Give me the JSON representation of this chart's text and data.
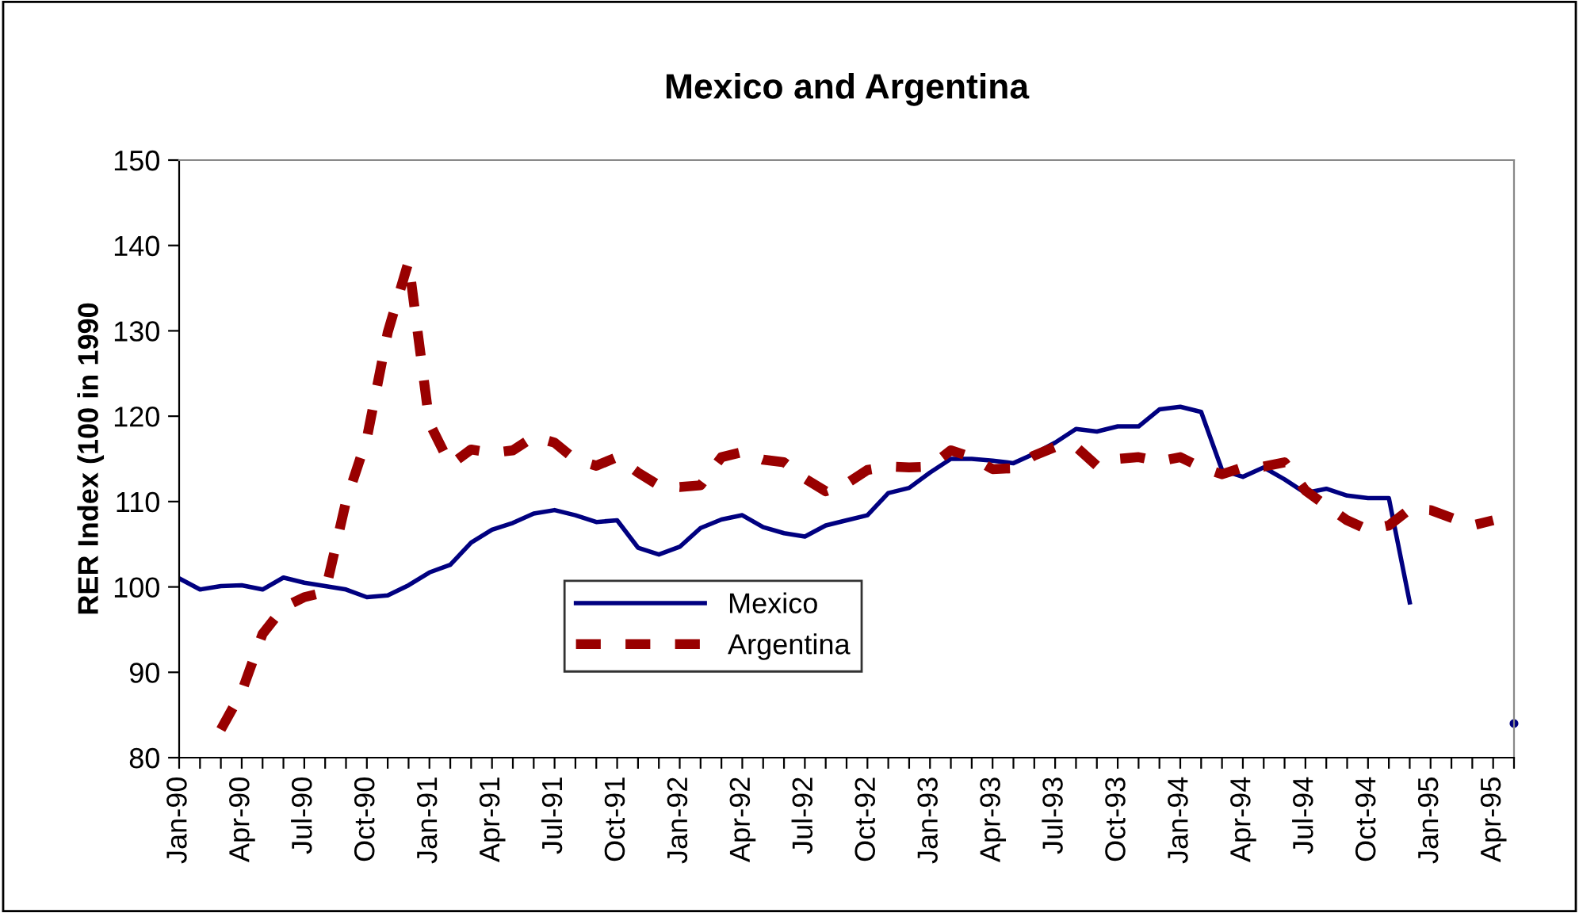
{
  "chart_data": {
    "type": "line",
    "title": "Mexico and Argentina",
    "ylabel": "RER Index (100 in 1990",
    "categories": [
      "Jan-90",
      null,
      null,
      "Apr-90",
      null,
      null,
      "Jul-90",
      null,
      null,
      "Oct-90",
      null,
      null,
      "Jan-91",
      null,
      null,
      "Apr-91",
      null,
      null,
      "Jul-91",
      null,
      null,
      "Oct-91",
      null,
      null,
      "Jan-92",
      null,
      null,
      "Apr-92",
      null,
      null,
      "Jul-92",
      null,
      null,
      "Oct-92",
      null,
      null,
      "Jan-93",
      null,
      null,
      "Apr-93",
      null,
      null,
      "Jul-93",
      null,
      null,
      "Oct-93",
      null,
      null,
      "Jan-94",
      null,
      null,
      "Apr-94",
      null,
      null,
      "Jul-94",
      null,
      null,
      "Oct-94",
      null,
      null,
      "Jan-95",
      null,
      null,
      "Apr-95",
      null
    ],
    "series": [
      {
        "name": "Mexico",
        "color": "#000080",
        "line_style": "solid",
        "values": [
          101.0,
          99.7,
          100.1,
          100.2,
          99.7,
          101.1,
          100.5,
          100.1,
          99.7,
          98.8,
          99.0,
          100.2,
          101.7,
          102.6,
          105.2,
          106.7,
          107.5,
          108.6,
          109.0,
          108.4,
          107.6,
          107.8,
          104.6,
          103.8,
          104.7,
          106.9,
          107.9,
          108.4,
          107.0,
          106.3,
          105.9,
          107.2,
          107.8,
          108.4,
          111.0,
          111.6,
          113.4,
          115.0,
          115.0,
          114.8,
          114.5,
          115.6,
          116.9,
          118.5,
          118.2,
          118.8,
          118.8,
          120.8,
          121.1,
          120.5,
          113.7,
          112.9,
          114.0,
          112.6,
          111.0,
          111.5,
          110.7,
          110.4,
          110.4,
          98.2,
          null,
          null,
          null,
          null,
          84.0
        ]
      },
      {
        "name": "Argentina",
        "color": "#990000",
        "line_style": "dashed",
        "values": [
          null,
          null,
          83.3,
          87.7,
          94.5,
          97.6,
          98.8,
          99.4,
          110.0,
          117.4,
          129.8,
          138.1,
          119.2,
          114.3,
          116.1,
          115.7,
          116.0,
          117.6,
          116.9,
          114.9,
          114.2,
          115.2,
          113.4,
          111.9,
          111.7,
          111.9,
          115.2,
          115.8,
          114.9,
          114.6,
          112.7,
          111.2,
          112.1,
          113.7,
          114.1,
          114.0,
          114.1,
          116.0,
          115.2,
          113.8,
          113.9,
          115.4,
          116.4,
          116.4,
          114.2,
          115.0,
          115.2,
          114.7,
          115.2,
          114.0,
          113.2,
          114.0,
          114.1,
          114.6,
          111.3,
          109.5,
          107.8,
          106.7,
          107.2,
          109.1,
          109.0,
          108.1,
          107.2,
          107.8,
          null
        ]
      }
    ],
    "ylim": [
      80,
      150
    ],
    "yticks": [
      80,
      90,
      100,
      110,
      120,
      130,
      140,
      150
    ],
    "legend": "center",
    "grid": false,
    "marker": "none"
  }
}
